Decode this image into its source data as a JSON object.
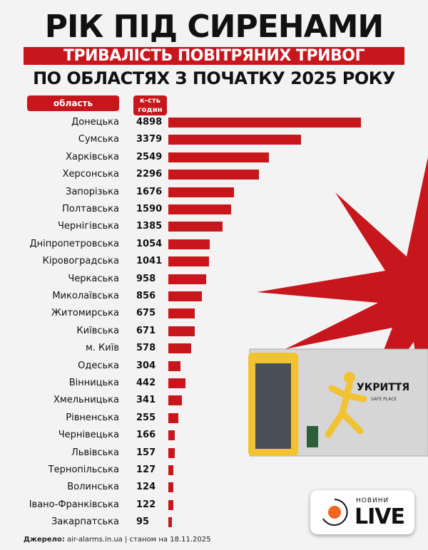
{
  "header": {
    "title": "РІК ПІД СИРЕНАМИ",
    "banner": "ТРИВАЛІСТЬ ПОВІТРЯНИХ ТРИВОГ",
    "subtitle": "ПО ОБЛАСТЯХ З ПОЧАТКУ 2025 РОКУ"
  },
  "chart_data": {
    "type": "bar",
    "orientation": "horizontal",
    "title": "ТРИВАЛІСТЬ ПОВІТРЯНИХ ТРИВОГ ПО ОБЛАСТЯХ З ПОЧАТКУ 2025 РОКУ",
    "category_header": "область",
    "value_header": "к-сть годин",
    "categories": [
      "Донецька",
      "Сумська",
      "Харківська",
      "Херсонська",
      "Запорізька",
      "Полтавська",
      "Чернігівська",
      "Дніпропетровська",
      "Кіровоградська",
      "Черкаська",
      "Миколаївська",
      "Житомирська",
      "Київська",
      "м. Київ",
      "Одеська",
      "Вінницька",
      "Хмельницька",
      "Рівненська",
      "Чернівецька",
      "Львівська",
      "Тернопільська",
      "Волинська",
      "Івано-Франківська",
      "Закарпатська"
    ],
    "values": [
      4898,
      3379,
      2549,
      2296,
      1676,
      1590,
      1385,
      1054,
      1041,
      958,
      856,
      675,
      671,
      578,
      304,
      442,
      341,
      255,
      166,
      157,
      127,
      124,
      122,
      95
    ],
    "bar_color": "#c8161d",
    "grid": false
  },
  "image": {
    "shelter_sign": "УКРИТТЯ",
    "shelter_sub": "SAFE PLACE"
  },
  "source": {
    "label": "Джерело:",
    "text": " air-alarms.in.ua | станом на 18.11.2025"
  },
  "logo": {
    "top": "НОВИНИ",
    "main": "LIVE",
    "accent": "#f26522"
  }
}
